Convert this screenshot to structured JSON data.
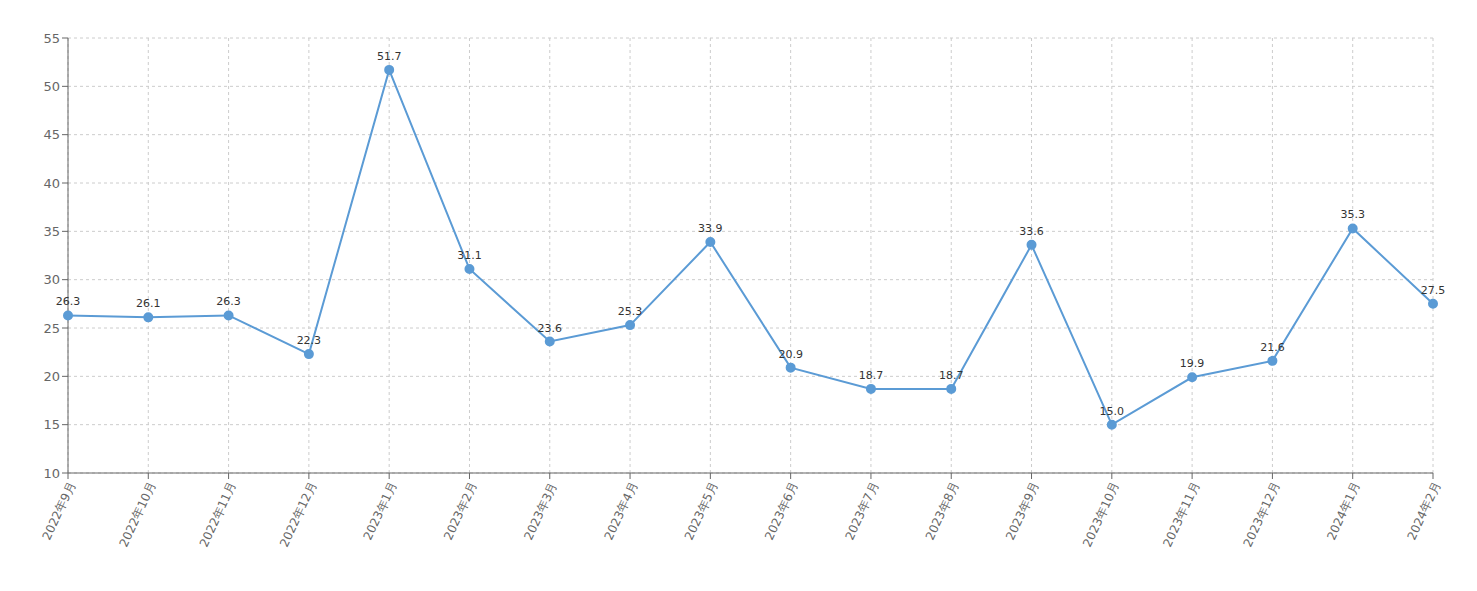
{
  "chart_data": {
    "type": "line",
    "categories": [
      "2022年9月",
      "2022年10月",
      "2022年11月",
      "2022年12月",
      "2023年1月",
      "2023年2月",
      "2023年3月",
      "2023年4月",
      "2023年5月",
      "2023年6月",
      "2023年7月",
      "2023年8月",
      "2023年9月",
      "2023年10月",
      "2023年11月",
      "2023年12月",
      "2024年1月",
      "2024年2月"
    ],
    "values": [
      26.3,
      26.1,
      26.3,
      22.3,
      51.7,
      31.1,
      23.6,
      25.3,
      33.9,
      20.9,
      18.7,
      18.7,
      33.6,
      15.0,
      19.9,
      21.6,
      35.3,
      27.5
    ],
    "value_labels": [
      "26.3",
      "26.1",
      "26.3",
      "22.3",
      "51.7",
      "31.1",
      "23.6",
      "25.3",
      "33.9",
      "20.9",
      "18.7",
      "18.7",
      "33.6",
      "15.0",
      "19.9",
      "21.6",
      "35.3",
      "27.5"
    ],
    "color": "#5B9BD5",
    "marker": "circle",
    "ylim": [
      10,
      55
    ],
    "yticks": [
      10,
      15,
      20,
      25,
      30,
      35,
      40,
      45,
      50,
      55
    ],
    "grid": true,
    "data_labels": true
  }
}
